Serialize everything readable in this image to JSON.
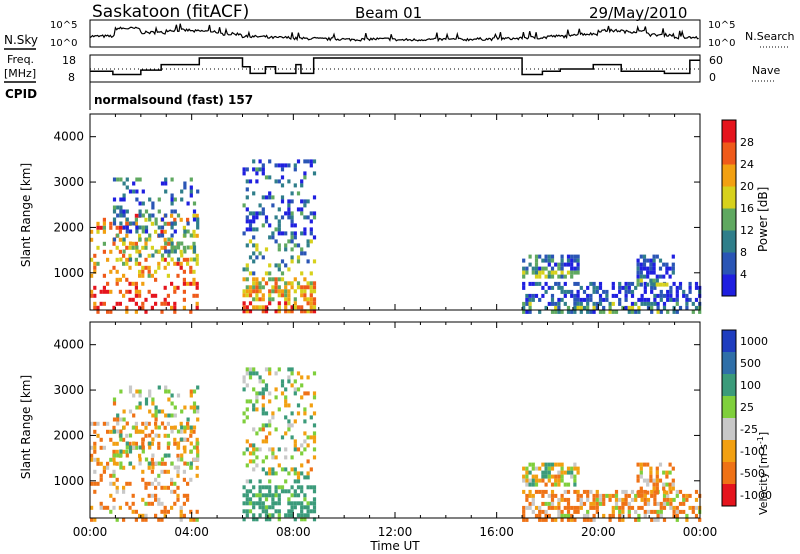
{
  "header": {
    "title": "Saskatoon (fitACF)",
    "beam": "Beam 01",
    "date": "29/May/2010",
    "program": "normalsound (fast) 157"
  },
  "panel_labels": {
    "nsky": "N.Sky",
    "freq_top": "Freq.",
    "freq_unit": "[MHz]",
    "cpid": "CPID",
    "nsearch": "N.Search",
    "nave": "Nave"
  },
  "tick_labels": {
    "nsky_hi": "10^5",
    "nsky_lo": "10^0",
    "nsearch_hi": "10^5",
    "nsearch_lo": "10^0",
    "freq_hi": "18",
    "freq_lo": "8",
    "nave_hi": "60",
    "nave_lo": "0"
  },
  "axes": {
    "xlabel": "Time UT",
    "ylabel": "Slant Range [km]",
    "x_ticks": [
      "00:00",
      "04:00",
      "08:00",
      "12:00",
      "16:00",
      "20:00",
      "00:00"
    ],
    "y_ticks": [
      "1000",
      "2000",
      "3000",
      "4000"
    ]
  },
  "colorbars": {
    "power": {
      "label": "Power [dB]",
      "ticks": [
        "4",
        "8",
        "12",
        "16",
        "20",
        "24",
        "28"
      ],
      "colors": [
        "#1f1fe0",
        "#2a55b5",
        "#2f7e8a",
        "#5fa860",
        "#d7d11c",
        "#f2a011",
        "#ef5a1a",
        "#e5141d"
      ]
    },
    "velocity": {
      "label": "Velocity [m s",
      "label_sup": "-1",
      "label_end": "]",
      "ticks": [
        "1000",
        "500",
        "100",
        "25",
        "-25",
        "-100",
        "-500",
        "-1000"
      ],
      "colors": [
        "#1f3dbf",
        "#2f6fa8",
        "#3b9b7a",
        "#7fcf3c",
        "#c8c8c8",
        "#f2a011",
        "#ef7216",
        "#e5141d"
      ]
    }
  },
  "chart_data": {
    "type": "heatmap",
    "title": "Saskatoon (fitACF)",
    "x_range_hours": [
      0,
      24
    ],
    "y_range_km": [
      180,
      4500
    ],
    "nsky_log": [
      1.9,
      3.6,
      2.7,
      3.2,
      3.0,
      2.4,
      1.8,
      1.6,
      1.4,
      1.3,
      1.2,
      1.3,
      1.1,
      1.2,
      1.2,
      1.3,
      1.4,
      1.6,
      1.9,
      2.4,
      3.1,
      2.9,
      2.2,
      1.6
    ],
    "freq_mhz_steps": [
      [
        0,
        12
      ],
      [
        0.9,
        10.5
      ],
      [
        2.0,
        12.5
      ],
      [
        2.8,
        15
      ],
      [
        4.3,
        18
      ],
      [
        6.0,
        14
      ],
      [
        6.3,
        11
      ],
      [
        6.9,
        14
      ],
      [
        7.3,
        11
      ],
      [
        8.1,
        15
      ],
      [
        8.3,
        11
      ],
      [
        8.8,
        18
      ],
      [
        17.0,
        10.5
      ],
      [
        17.8,
        12
      ],
      [
        18.5,
        13
      ],
      [
        19.8,
        15
      ],
      [
        20.9,
        12
      ],
      [
        22.6,
        11
      ],
      [
        23.6,
        17
      ],
      [
        24,
        17
      ]
    ],
    "echo_regions": [
      {
        "t0": 0.0,
        "t1": 4.2,
        "r0": 180,
        "r1": 2300,
        "power_db": 24,
        "velocity_ms": -100
      },
      {
        "t0": 0.9,
        "t1": 4.2,
        "r0": 1300,
        "r1": 3100,
        "power_db": 10,
        "velocity_ms": 25
      },
      {
        "t0": 6.0,
        "t1": 8.8,
        "r0": 180,
        "r1": 900,
        "power_db": 22,
        "velocity_ms": 200
      },
      {
        "t0": 6.0,
        "t1": 8.8,
        "r0": 1000,
        "r1": 3500,
        "power_db": 8,
        "velocity_ms": 25
      },
      {
        "t0": 17.0,
        "t1": 19.2,
        "r0": 900,
        "r1": 1400,
        "power_db": 9,
        "velocity_ms": 25
      },
      {
        "t0": 17.0,
        "t1": 24.0,
        "r0": 180,
        "r1": 800,
        "power_db": 6,
        "velocity_ms": -100
      },
      {
        "t0": 21.5,
        "t1": 23.0,
        "r0": 700,
        "r1": 1400,
        "power_db": 7,
        "velocity_ms": -100
      }
    ]
  }
}
